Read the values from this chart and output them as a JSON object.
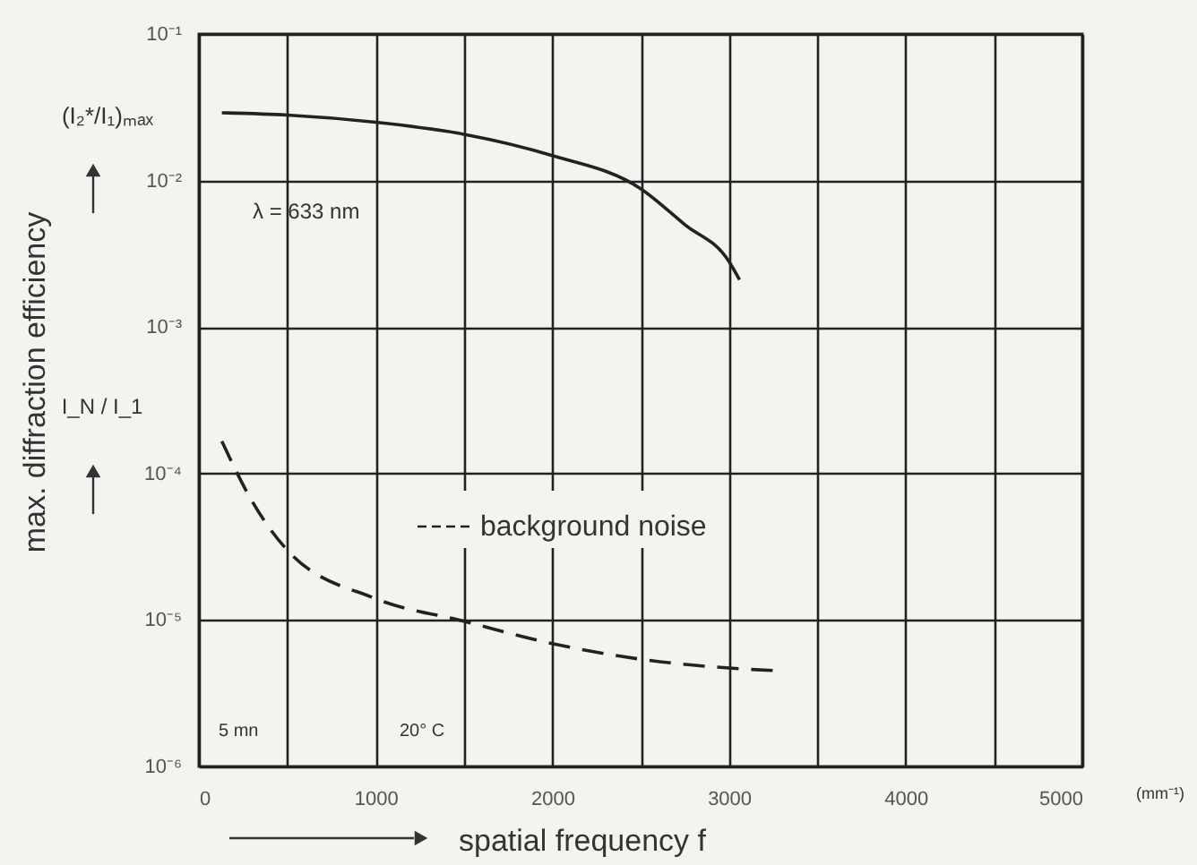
{
  "chart_data": {
    "type": "line",
    "xlabel": "spatial frequency f",
    "ylabel": "max. diffraction efficiency",
    "log": "y",
    "xlim": [
      0,
      5000
    ],
    "ylim": [
      1e-06,
      0.1
    ],
    "xticks": [
      0,
      {
        "value": 500,
        "label": null
      },
      1000,
      {
        "value": 1500,
        "label": null
      },
      2000,
      {
        "value": 2500,
        "label": null
      },
      3000,
      {
        "value": 3500,
        "label": null
      },
      4000,
      {
        "value": 4500,
        "label": null
      },
      5000
    ],
    "yticks": [
      {
        "value": 1e-06,
        "label": "10⁻⁶"
      },
      {
        "value": 1e-05,
        "label": "10⁻⁵"
      },
      {
        "value": 0.0001,
        "label": "10⁻⁴"
      },
      {
        "value": 0.001,
        "label": "10⁻³"
      },
      {
        "value": 0.01,
        "label": "10⁻²"
      },
      {
        "value": 0.1,
        "label": "10⁻¹"
      }
    ],
    "grid": true,
    "legend": "center",
    "marker": "none",
    "series": [
      {
        "color": "#222222",
        "line_style": "solid",
        "x": [
          130,
          500,
          1000,
          1500,
          2000,
          2500,
          2750,
          3000,
          3060
        ],
        "values": [
          0.029,
          0.028,
          0.025,
          0.0207,
          0.0148,
          0.0088,
          0.005,
          0.0028,
          0.0021
        ]
      },
      {
        "name": "background noise",
        "color": "#222222",
        "line_style": "dashed",
        "x": [
          130,
          300,
          500,
          1000,
          1500,
          2000,
          2500,
          3000,
          3280
        ],
        "values": [
          0.000166,
          6.5e-05,
          3e-05,
          1.4e-05,
          9.8e-06,
          6.9e-06,
          5.4e-06,
          4.7e-06,
          4.5e-06
        ]
      }
    ],
    "annotations": [
      "(I₂*/I₁)ₘₐₓ",
      "I_N / I_1",
      "λ = 633 nm",
      "5 mn",
      "20° C",
      "(mm⁻¹)"
    ]
  }
}
